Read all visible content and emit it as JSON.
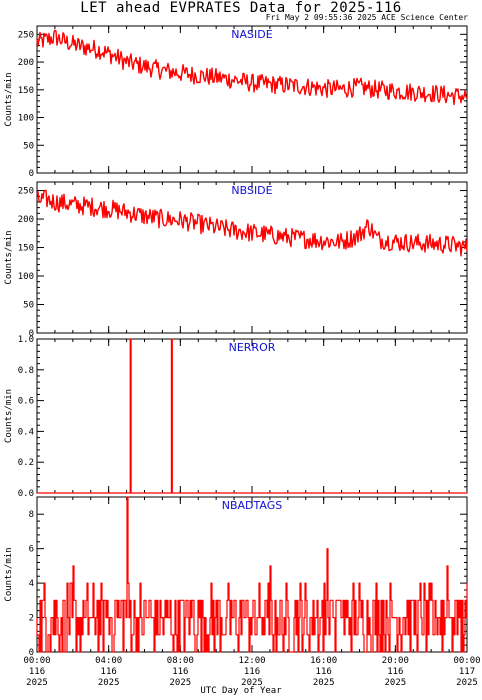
{
  "header": {
    "title": "LET ahead EVPRATES Data for 2025-116",
    "timestamp": "Fri May  2 09:55:36 2025 ACE Science Center",
    "xlabel": "UTC Day of Year"
  },
  "colors": {
    "series": "#ff0000",
    "panel_title": "#1010d0",
    "axes": "#000000"
  },
  "x_axis": {
    "range_hours": [
      0,
      24
    ],
    "ticks": [
      {
        "hour": 0,
        "time": "00:00",
        "day": "116",
        "year": "2025"
      },
      {
        "hour": 4,
        "time": "04:00",
        "day": "116",
        "year": "2025"
      },
      {
        "hour": 8,
        "time": "08:00",
        "day": "116",
        "year": "2025"
      },
      {
        "hour": 12,
        "time": "12:00",
        "day": "116",
        "year": "2025"
      },
      {
        "hour": 16,
        "time": "16:00",
        "day": "116",
        "year": "2025"
      },
      {
        "hour": 20,
        "time": "20:00",
        "day": "116",
        "year": "2025"
      },
      {
        "hour": 24,
        "time": "00:00",
        "day": "117",
        "year": "2025"
      }
    ]
  },
  "chart_data": [
    {
      "type": "line",
      "title": "NASIDE",
      "ylabel": "Counts/min",
      "ylim": [
        0,
        265
      ],
      "yticks": [
        0,
        50,
        100,
        150,
        200,
        250
      ],
      "ytick_labels": [
        "0",
        "50",
        "100",
        "150",
        "200",
        "250"
      ],
      "series": [
        {
          "x_hours": [
            0,
            0.5,
            1,
            1.5,
            2,
            2.5,
            3,
            3.5,
            4,
            4.5,
            5,
            6,
            7,
            8,
            9,
            10,
            11,
            12,
            13,
            14,
            15,
            16,
            17,
            18,
            19,
            20,
            21,
            22,
            23,
            24
          ],
          "values": [
            235,
            240,
            245,
            238,
            232,
            228,
            225,
            222,
            215,
            208,
            200,
            192,
            185,
            180,
            176,
            172,
            168,
            162,
            160,
            158,
            156,
            152,
            151,
            155,
            150,
            148,
            146,
            144,
            140,
            138
          ]
        }
      ],
      "noise_amplitude": 24
    },
    {
      "type": "line",
      "title": "NBSIDE",
      "ylabel": "Counts/min",
      "ylim": [
        0,
        265
      ],
      "yticks": [
        0,
        50,
        100,
        150,
        200,
        250
      ],
      "ytick_labels": [
        "0",
        "50",
        "100",
        "150",
        "200",
        "250"
      ],
      "series": [
        {
          "x_hours": [
            0,
            0.5,
            1,
            1.5,
            2,
            3,
            4,
            5,
            6,
            7,
            8,
            9,
            10,
            11,
            12,
            13,
            14,
            15,
            16,
            17,
            18,
            18.5,
            19,
            20,
            21,
            22,
            23,
            24
          ],
          "values": [
            232,
            235,
            230,
            228,
            225,
            222,
            218,
            212,
            205,
            200,
            198,
            192,
            185,
            180,
            176,
            172,
            168,
            165,
            162,
            160,
            172,
            190,
            165,
            160,
            158,
            157,
            155,
            150
          ]
        }
      ],
      "noise_amplitude": 24
    },
    {
      "type": "line",
      "title": "NERROR",
      "ylabel": "Counts/min",
      "ylim": [
        0,
        1.0
      ],
      "yticks": [
        0,
        0.2,
        0.4,
        0.6,
        0.8,
        1.0
      ],
      "ytick_labels": [
        "0.0",
        "0.2",
        "0.4",
        "0.6",
        "0.8",
        "1.0"
      ],
      "series": [
        {
          "x_hours": [
            0,
            5.2,
            5.2,
            5.25,
            5.25,
            7.5,
            7.5,
            7.55,
            7.55,
            24
          ],
          "values": [
            0,
            0,
            1.0,
            1.0,
            0,
            0,
            1.0,
            1.0,
            0,
            0
          ]
        }
      ]
    },
    {
      "type": "line",
      "title": "NBADTAGS",
      "ylabel": "Counts/min",
      "ylim": [
        0,
        9
      ],
      "yticks": [
        0,
        2,
        4,
        6,
        8
      ],
      "ytick_labels": [
        "0",
        "2",
        "4",
        "6",
        "8"
      ],
      "series": [
        {
          "typical_range": [
            0,
            4
          ],
          "spikes": [
            {
              "hour": 5.0,
              "value": 9
            },
            {
              "hour": 2.0,
              "value": 5
            },
            {
              "hour": 16.2,
              "value": 6
            },
            {
              "hour": 22.9,
              "value": 5
            },
            {
              "hour": 13.0,
              "value": 5
            }
          ]
        }
      ]
    }
  ]
}
